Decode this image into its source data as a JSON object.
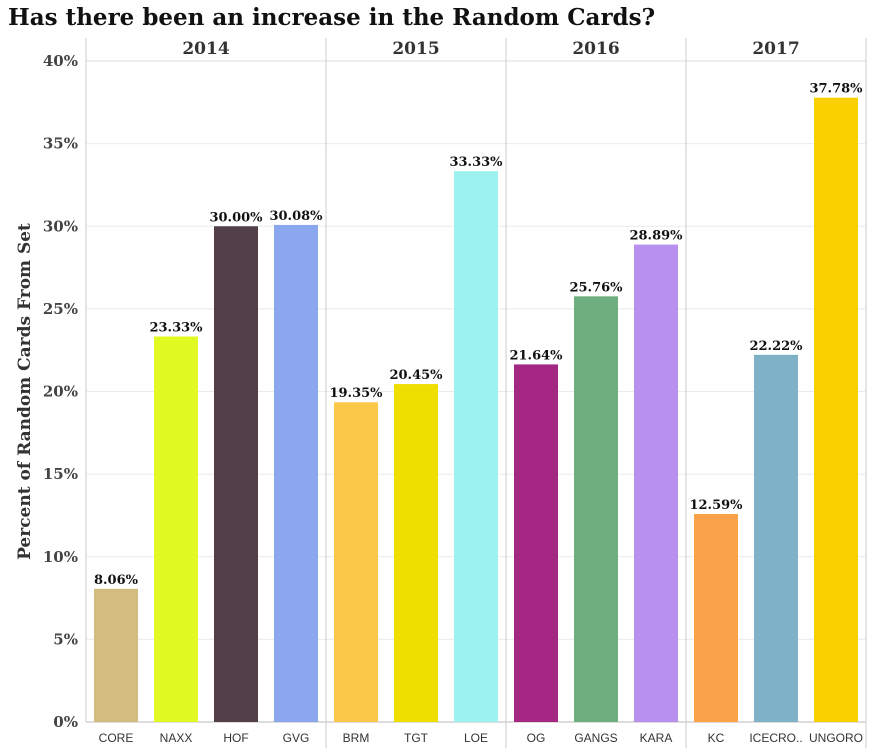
{
  "chart_data": {
    "type": "bar",
    "title": "Has there been an increase in the Random Cards?",
    "ylabel": "Percent of Random Cards From Set",
    "xlabel": "",
    "ylim": [
      0,
      40
    ],
    "yticks": [
      "0%",
      "5%",
      "10%",
      "15%",
      "20%",
      "25%",
      "30%",
      "35%",
      "40%"
    ],
    "grid": true,
    "groups": [
      {
        "year": "2014",
        "bars": [
          {
            "category": "CORE",
            "value": 8.06,
            "label": "8.06%",
            "color": "#D2BC7E"
          },
          {
            "category": "NAXX",
            "value": 23.33,
            "label": "23.33%",
            "color": "#E1FA24"
          },
          {
            "category": "HOF",
            "value": 30.0,
            "label": "30.00%",
            "color": "#533F4A"
          },
          {
            "category": "GVG",
            "value": 30.08,
            "label": "30.08%",
            "color": "#8BA8EF"
          }
        ]
      },
      {
        "year": "2015",
        "bars": [
          {
            "category": "BRM",
            "value": 19.35,
            "label": "19.35%",
            "color": "#FCC84A"
          },
          {
            "category": "TGT",
            "value": 20.45,
            "label": "20.45%",
            "color": "#EEDF00"
          },
          {
            "category": "LOE",
            "value": 33.33,
            "label": "33.33%",
            "color": "#9BF2EE"
          }
        ]
      },
      {
        "year": "2016",
        "bars": [
          {
            "category": "OG",
            "value": 21.64,
            "label": "21.64%",
            "color": "#A42883"
          },
          {
            "category": "GANGS",
            "value": 25.76,
            "label": "25.76%",
            "color": "#6FAE7E"
          },
          {
            "category": "KARA",
            "value": 28.89,
            "label": "28.89%",
            "color": "#B890EE"
          }
        ]
      },
      {
        "year": "2017",
        "bars": [
          {
            "category": "KC",
            "value": 12.59,
            "label": "12.59%",
            "color": "#F9A24A"
          },
          {
            "category": "ICECRO..",
            "value": 22.22,
            "label": "22.22%",
            "color": "#80B2C7"
          },
          {
            "category": "UNGORO",
            "value": 37.78,
            "label": "37.78%",
            "color": "#FBD000"
          }
        ]
      }
    ]
  }
}
